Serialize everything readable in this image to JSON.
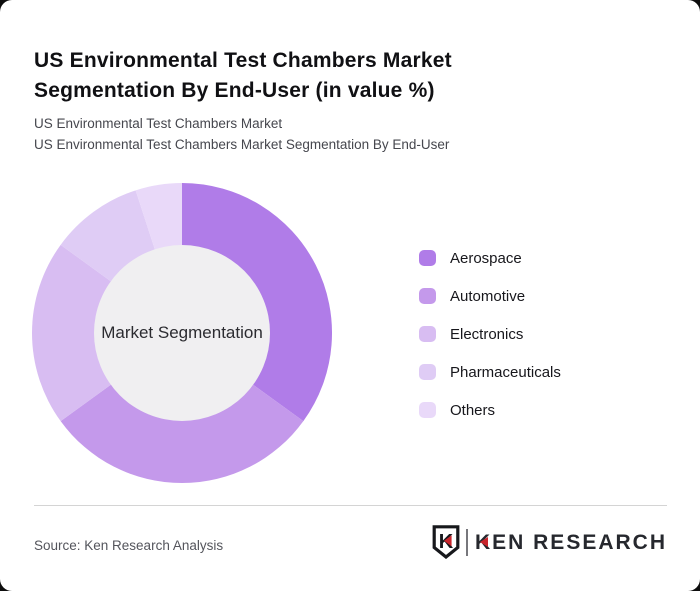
{
  "header": {
    "title": "US Environmental Test Chambers Market Segmentation By End-User (in value %)",
    "subtitle_line1": "US Environmental Test Chambers Market",
    "subtitle_line2": "US Environmental Test Chambers Market Segmentation By End-User"
  },
  "chart_data": {
    "type": "pie",
    "variant": "donut",
    "title": "US Environmental Test Chambers Market Segmentation By End-User (in value %)",
    "center_label": "Market Segmentation",
    "unit": "value %",
    "legend_position": "right",
    "start_angle_deg": 0,
    "segments": [
      {
        "label": "Aerospace",
        "value": 35,
        "color": "#b07ce8"
      },
      {
        "label": "Automotive",
        "value": 30,
        "color": "#c499eb"
      },
      {
        "label": "Electronics",
        "value": 20,
        "color": "#d8bdf2"
      },
      {
        "label": "Pharmaceuticals",
        "value": 10,
        "color": "#dfccf5"
      },
      {
        "label": "Others",
        "value": 5,
        "color": "#e9d9f9"
      }
    ]
  },
  "footer": {
    "source": "Source: Ken Research Analysis",
    "logo": {
      "shield_letter": "K",
      "brand": "KEN RESEARCH"
    }
  },
  "theme": {
    "card_bg": "#ffffff",
    "page_bg": "#0d0d0d",
    "center_circle": "#f0eff1",
    "divider": "#d4d4d4",
    "logo_dark": "#26282e",
    "logo_red": "#c9252c"
  }
}
